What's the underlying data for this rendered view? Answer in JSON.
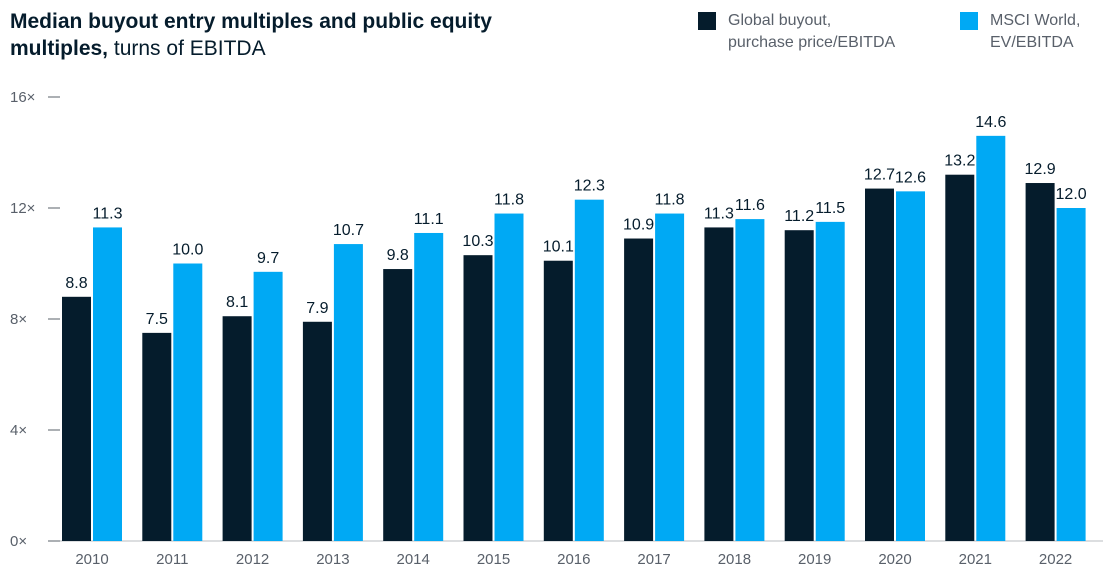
{
  "title_bold": "Median buyout entry multiples and public equity multiples,",
  "title_rest": " turns of EBITDA",
  "colors": {
    "buyout": "#051c2c",
    "msci": "#00a9f4"
  },
  "chart_data": {
    "type": "bar",
    "title": "Median buyout entry multiples and public equity multiples, turns of EBITDA",
    "categories": [
      "2010",
      "2011",
      "2012",
      "2013",
      "2014",
      "2015",
      "2016",
      "2017",
      "2018",
      "2019",
      "2020",
      "2021",
      "2022"
    ],
    "series": [
      {
        "name": "Global buyout, purchase price/EBITDA",
        "values": [
          8.8,
          7.5,
          8.1,
          7.9,
          9.8,
          10.3,
          10.1,
          10.9,
          11.3,
          11.2,
          12.7,
          13.2,
          12.9
        ]
      },
      {
        "name": "MSCI World, EV/EBITDA",
        "values": [
          11.3,
          10.0,
          9.7,
          10.7,
          11.1,
          11.8,
          12.3,
          11.8,
          11.6,
          11.5,
          12.6,
          14.6,
          12.0
        ]
      }
    ],
    "ylim": [
      0,
      16
    ],
    "yticks": [
      "0×",
      "4×",
      "8×",
      "12×",
      "16×"
    ],
    "ytick_values": [
      0,
      4,
      8,
      12,
      16
    ],
    "legend_lines": [
      [
        "Global buyout,",
        "purchase price/EBITDA"
      ],
      [
        "MSCI World,",
        "EV/EBITDA"
      ]
    ]
  }
}
